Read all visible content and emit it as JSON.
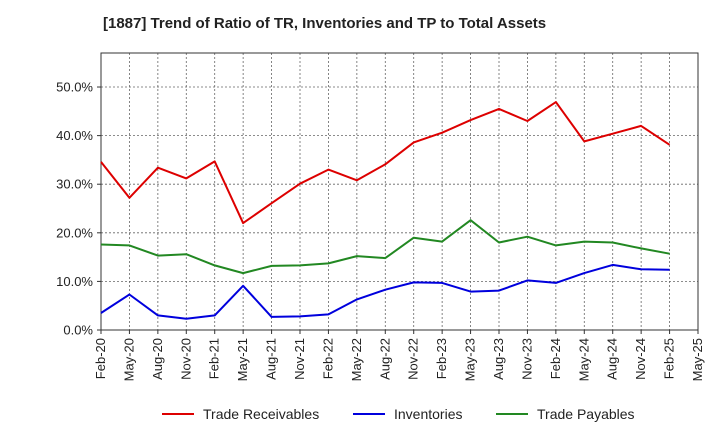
{
  "chart_data": {
    "type": "line",
    "title": "[1887]  Trend of Ratio of TR, Inventories and TP to Total Assets",
    "x": [
      "Feb-20",
      "May-20",
      "Aug-20",
      "Nov-20",
      "Feb-21",
      "May-21",
      "Aug-21",
      "Nov-21",
      "Feb-22",
      "May-22",
      "Aug-22",
      "Nov-22",
      "Feb-23",
      "May-23",
      "Aug-23",
      "Nov-23",
      "Feb-24",
      "May-24",
      "Aug-24",
      "Nov-24",
      "Feb-25",
      "May-25"
    ],
    "y_ticks": [
      "0.0%",
      "10.0%",
      "20.0%",
      "30.0%",
      "40.0%",
      "50.0%"
    ],
    "ylim": [
      0,
      57
    ],
    "grid": true,
    "legend_position": "bottom",
    "series": [
      {
        "name": "Trade Receivables",
        "color": "#dd0000",
        "values": [
          34.6,
          27.2,
          33.4,
          31.2,
          34.7,
          22.0,
          26.1,
          30.1,
          33.0,
          30.8,
          34.1,
          38.6,
          40.6,
          43.2,
          45.5,
          43.0,
          46.9,
          38.8,
          40.4,
          42.0,
          38.1,
          null
        ]
      },
      {
        "name": "Inventories",
        "color": "#0000dd",
        "values": [
          3.5,
          7.3,
          3.0,
          2.3,
          3.0,
          9.1,
          2.7,
          2.8,
          3.2,
          6.3,
          8.3,
          9.8,
          9.7,
          7.9,
          8.1,
          10.2,
          9.7,
          11.7,
          13.4,
          12.5,
          12.4,
          null
        ]
      },
      {
        "name": "Trade Payables",
        "color": "#228822",
        "values": [
          17.6,
          17.4,
          15.3,
          15.6,
          13.3,
          11.7,
          13.2,
          13.3,
          13.7,
          15.2,
          14.8,
          19.0,
          18.2,
          22.6,
          18.0,
          19.2,
          17.4,
          18.2,
          18.0,
          16.8,
          15.7,
          null
        ]
      }
    ]
  }
}
